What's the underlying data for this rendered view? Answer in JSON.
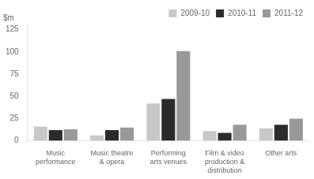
{
  "chart_data": {
    "type": "bar",
    "annotation": "$m",
    "categories": [
      "Music\nperformance",
      "Music theatre\n& opera",
      "Performing\narts venues",
      "Film & video\nproduction &\ndistribution",
      "Other arts"
    ],
    "series": [
      {
        "name": "2009-10",
        "color": "#c8c8c8",
        "values": [
          16,
          6,
          42,
          11,
          14
        ]
      },
      {
        "name": "2010-11",
        "color": "#2b2b2b",
        "values": [
          12,
          12,
          47,
          9,
          18
        ]
      },
      {
        "name": "2011-12",
        "color": "#999999",
        "values": [
          13,
          15,
          101,
          18,
          25
        ]
      }
    ],
    "ylim": [
      0,
      130
    ],
    "yticks": [
      0,
      25,
      50,
      75,
      100,
      125
    ],
    "grid": false,
    "legend": "upper right"
  }
}
